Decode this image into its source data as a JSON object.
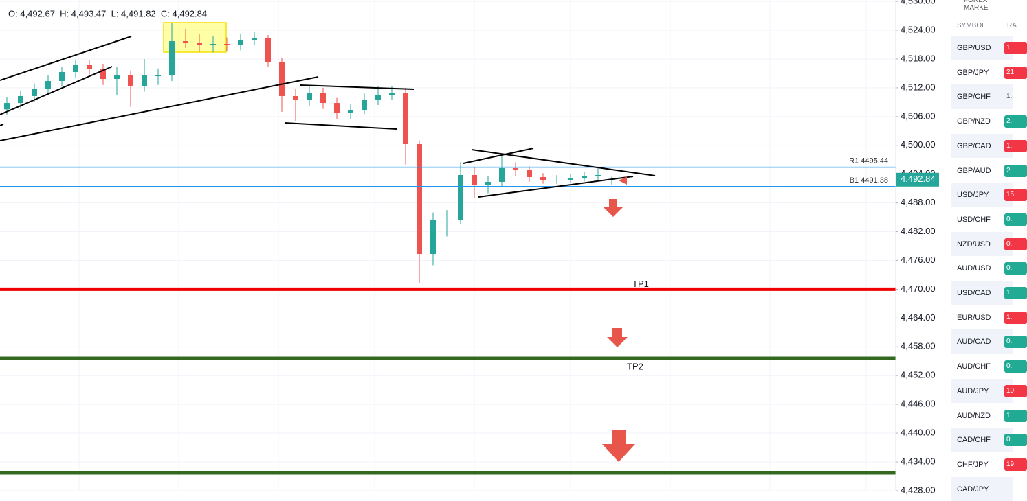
{
  "chart_data": {
    "type": "candlestick",
    "legend_text": "O: 4,492.67  H: 4,493.47  L: 4,491.82  C: 4,492.84",
    "open": [
      4507.5,
      4508.83,
      4510.27,
      4511.7,
      4513.41,
      4515.27,
      4516.71,
      4515.99,
      4513.84,
      4514.56,
      4512.41,
      4514.56,
      4514.56,
      4521.71,
      4521.43,
      4520.86,
      4521.14,
      4520.86,
      4522.0,
      4522.29,
      4517.42,
      4510.27,
      4509.55,
      4510.98,
      4508.83,
      4506.69,
      4507.4,
      4509.55,
      4510.55,
      4510.98,
      4500.25,
      4477.35,
      4484.51,
      4484.51,
      4493.81,
      4491.66,
      4492.38,
      4495.24,
      4494.81,
      4493.38,
      4492.81,
      4492.81,
      4493.09,
      4493.67,
      4492.67
    ],
    "high": [
      4510.0,
      4511.4,
      4512.9,
      4514.6,
      4516.4,
      4517.9,
      4517.8,
      4517.0,
      4516.4,
      4515.6,
      4518.0,
      4516.0,
      4525.5,
      4524.3,
      4523.2,
      4522.8,
      4522.5,
      4523.3,
      4523.6,
      4523.0,
      4518.3,
      4511.8,
      4512.5,
      4512.0,
      4509.9,
      4508.6,
      4510.8,
      4512.3,
      4512.4,
      4512.0,
      4501.0,
      4486.0,
      4486.5,
      4496.5,
      4495.5,
      4493.6,
      4497.8,
      4496.5,
      4495.6,
      4494.2,
      4493.8,
      4494.0,
      4494.5,
      4495.2,
      4493.47
    ],
    "low": [
      4506.3,
      4507.6,
      4509.1,
      4510.5,
      4512.2,
      4514.1,
      4514.8,
      4512.6,
      4510.5,
      4508.0,
      4511.2,
      4512.6,
      4513.4,
      4520.3,
      4519.5,
      4519.4,
      4519.6,
      4519.8,
      4520.9,
      4516.3,
      4507.0,
      4505.0,
      4508.3,
      4507.6,
      4505.4,
      4505.5,
      4506.5,
      4508.4,
      4509.5,
      4496.0,
      4471.2,
      4475.0,
      4481.0,
      4483.5,
      4489.0,
      4490.0,
      4491.5,
      4493.6,
      4492.4,
      4492.0,
      4492.0,
      4492.2,
      4492.5,
      4492.6,
      4491.82
    ],
    "close": [
      4508.83,
      4510.27,
      4511.7,
      4513.41,
      4515.27,
      4516.71,
      4515.99,
      4513.84,
      4514.56,
      4512.41,
      4514.56,
      4514.56,
      4521.71,
      4521.43,
      4520.86,
      4521.14,
      4520.86,
      4522.0,
      4522.29,
      4517.42,
      4510.27,
      4509.55,
      4510.98,
      4508.83,
      4506.69,
      4507.4,
      4509.55,
      4510.55,
      4510.98,
      4500.25,
      4477.35,
      4484.51,
      4484.51,
      4493.81,
      4491.66,
      4492.38,
      4495.24,
      4494.81,
      4493.38,
      4492.81,
      4492.81,
      4493.09,
      4493.67,
      4493.81,
      4492.84
    ],
    "up_color": "#26a69a",
    "down_color": "#ef5350",
    "ylim": [
      4428.13,
      4530.3
    ],
    "yticks": [
      {
        "value": 4530,
        "label": "4,530.00"
      },
      {
        "value": 4524,
        "label": "4,524.00"
      },
      {
        "value": 4518,
        "label": "4,518.00"
      },
      {
        "value": 4512,
        "label": "4,512.00"
      },
      {
        "value": 4506,
        "label": "4,506.00"
      },
      {
        "value": 4500,
        "label": "4,500.00"
      },
      {
        "value": 4494,
        "label": "4,494.00"
      },
      {
        "value": 4488,
        "label": "4,488.00"
      },
      {
        "value": 4482,
        "label": "4,482.00"
      },
      {
        "value": 4476,
        "label": "4,476.00"
      },
      {
        "value": 4470,
        "label": "4,470.00"
      },
      {
        "value": 4464,
        "label": "4,464.00"
      },
      {
        "value": 4458,
        "label": "4,458.00"
      },
      {
        "value": 4452,
        "label": "4,452.00"
      },
      {
        "value": 4446,
        "label": "4,446.00"
      },
      {
        "value": 4440,
        "label": "4,440.00"
      },
      {
        "value": 4434,
        "label": "4,434.00"
      },
      {
        "value": 4428,
        "label": "4,428.00"
      }
    ],
    "grid": true,
    "current_price": {
      "value": 4492.84,
      "label": "4,492.84"
    },
    "levels": [
      {
        "name": "R1 4495.44",
        "value": 4495.44,
        "color": "#2196f3",
        "width": 1.5,
        "label_side": "above-right"
      },
      {
        "name": "B1 4491.38",
        "value": 4491.38,
        "color": "#2196f3",
        "width": 2,
        "label_side": "above-right"
      },
      {
        "name": "TP1",
        "value": 4470,
        "color": "#f00000",
        "width": 5,
        "label_side": "above-mid"
      },
      {
        "name": "TP2",
        "value": 4455.6,
        "color": "#33691e",
        "width": 5,
        "label_side": "below-mid"
      },
      {
        "value": 4431.7,
        "color": "#33691e",
        "width": 5
      }
    ]
  },
  "panel": {
    "title": "FOREX MARKE",
    "columns": [
      "SYMBOL",
      "RA"
    ],
    "rows": [
      [
        "GBP/USD",
        "1.",
        "#f23645"
      ],
      [
        "GBP/JPY",
        "21",
        "#f23645"
      ],
      [
        "GBP/CHF",
        "1.",
        null
      ],
      [
        "GBP/NZD",
        "2.",
        "#22ab94"
      ],
      [
        "GBP/CAD",
        "1.",
        "#f23645"
      ],
      [
        "GBP/AUD",
        "2.",
        "#22ab94"
      ],
      [
        "USD/JPY",
        "15",
        "#f23645"
      ],
      [
        "USD/CHF",
        "0.",
        "#22ab94"
      ],
      [
        "NZD/USD",
        "0.",
        "#f23645"
      ],
      [
        "AUD/USD",
        "0.",
        "#22ab94"
      ],
      [
        "USD/CAD",
        "1.",
        "#22ab94"
      ],
      [
        "EUR/USD",
        "1.",
        "#f23645"
      ],
      [
        "AUD/CAD",
        "0.",
        "#22ab94"
      ],
      [
        "AUD/CHF",
        "0.",
        "#22ab94"
      ],
      [
        "AUD/JPY",
        "10",
        "#f23645"
      ],
      [
        "AUD/NZD",
        "1.",
        "#22ab94"
      ],
      [
        "CAD/CHF",
        "0.",
        "#22ab94"
      ],
      [
        "CHF/JPY",
        "19",
        "#f23645"
      ],
      [
        "CAD/JPY",
        "",
        null
      ]
    ]
  }
}
